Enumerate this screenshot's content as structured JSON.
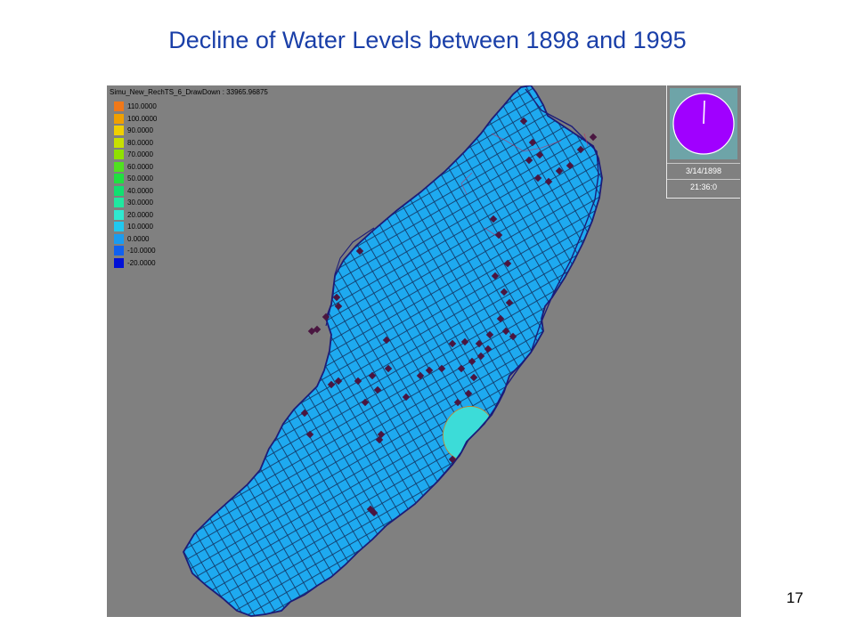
{
  "slide": {
    "title": "Decline of Water Levels between 1898 and 1995",
    "page_number": "17"
  },
  "map": {
    "run_title": "Simu_New_RechTS_6_DrawDown : 33965.96875",
    "model_cell_color": "#1eaaf0",
    "highlight_zone_color": "#3cdcd8",
    "background_color": "#808080",
    "boundary_color": "#1c1c78",
    "well_marker_color": "#4a1640",
    "legend": [
      {
        "label": "110.0000",
        "color": "#f07818"
      },
      {
        "label": "100.0000",
        "color": "#f0a000"
      },
      {
        "label": "90.0000",
        "color": "#f0d000"
      },
      {
        "label": "80.0000",
        "color": "#c8e000"
      },
      {
        "label": "70.0000",
        "color": "#90e000"
      },
      {
        "label": "60.0000",
        "color": "#50e020"
      },
      {
        "label": "50.0000",
        "color": "#20e040"
      },
      {
        "label": "40.0000",
        "color": "#10e070"
      },
      {
        "label": "30.0000",
        "color": "#20e8a0"
      },
      {
        "label": "20.0000",
        "color": "#30e8d0"
      },
      {
        "label": "10.0000",
        "color": "#20c8f0"
      },
      {
        "label": "0.0000",
        "color": "#1a9cf0"
      },
      {
        "label": "-10.0000",
        "color": "#1060f0"
      },
      {
        "label": "-20.0000",
        "color": "#0010d8"
      }
    ]
  },
  "clock": {
    "date": "3/14/1898",
    "time": "21:36:0",
    "face_color": "#a000ff"
  }
}
